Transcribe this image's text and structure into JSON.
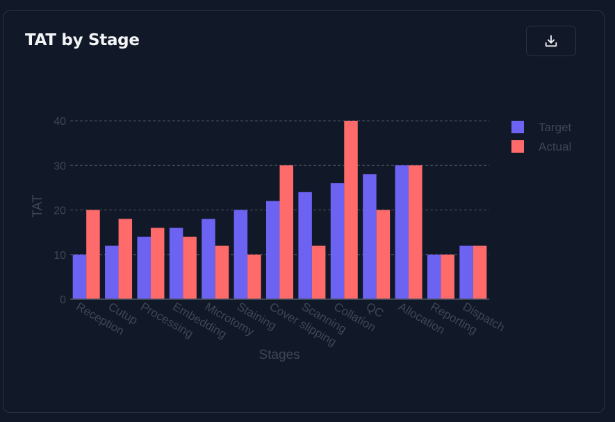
{
  "card": {
    "title": "TAT by Stage",
    "download_icon": "download-icon"
  },
  "colors": {
    "target": "#6c63f2",
    "actual": "#ff6b6b",
    "grid": "#4b5563",
    "axis_text": "#3d4756"
  },
  "chart_data": {
    "type": "bar",
    "categories": [
      "Reception",
      "Cutup",
      "Processing",
      "Embedding",
      "Microtomy",
      "Staining",
      "Cover slipping",
      "Scanning",
      "Collation",
      "QC",
      "Allocation",
      "Reporting",
      "Dispatch"
    ],
    "series": [
      {
        "name": "Target",
        "values": [
          10,
          12,
          14,
          16,
          18,
          20,
          22,
          24,
          26,
          28,
          30,
          10,
          12
        ]
      },
      {
        "name": "Actual",
        "values": [
          20,
          18,
          16,
          14,
          12,
          10,
          30,
          12,
          40,
          20,
          30,
          10,
          12
        ]
      }
    ],
    "xlabel": "Stages",
    "ylabel": "TAT",
    "ylim": [
      0,
      40
    ],
    "yticks": [
      "0",
      "10",
      "20",
      "30",
      "40"
    ],
    "grid": true,
    "legend_position": "top-right"
  }
}
